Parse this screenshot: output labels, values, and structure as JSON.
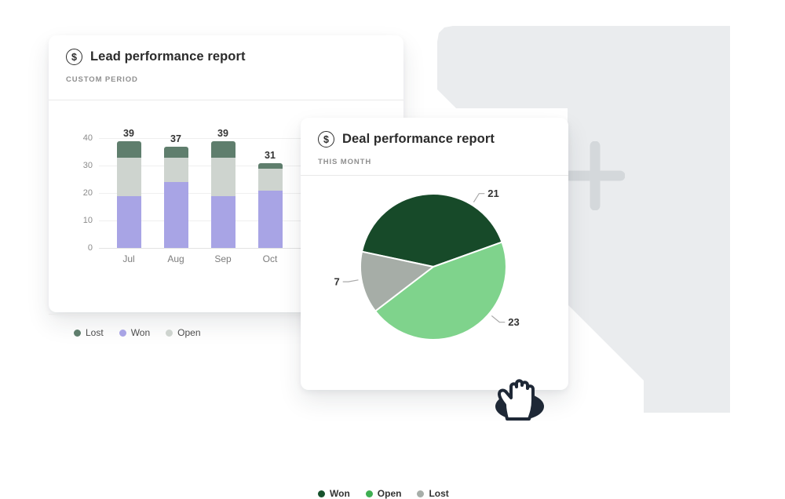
{
  "page": {
    "background": "#ffffff"
  },
  "panel": {
    "color": "#eaecee",
    "plus_icon_color": "#d4d8db"
  },
  "cards": {
    "lead": {
      "title": "Lead performance report",
      "subtitle": "CUSTOM PERIOD",
      "icon": "$",
      "legend": [
        {
          "label": "Lost",
          "color": "#5f7e6d"
        },
        {
          "label": "Won",
          "color": "#a8a4e5"
        },
        {
          "label": "Open",
          "color": "#ced4cf"
        }
      ]
    },
    "deal": {
      "title": "Deal performance report",
      "subtitle": "THIS MONTH",
      "icon": "$",
      "legend": [
        {
          "label": "Won",
          "color": "#17512c"
        },
        {
          "label": "Open",
          "color": "#3fae52"
        },
        {
          "label": "Lost",
          "color": "#a7aea9"
        }
      ]
    }
  },
  "chart_data": [
    {
      "type": "bar",
      "stacked": true,
      "title": "Lead performance report",
      "categories": [
        "Jul",
        "Aug",
        "Sep",
        "Oct"
      ],
      "series": [
        {
          "name": "Won",
          "color": "#a8a4e5",
          "values": [
            19,
            24,
            19,
            21
          ]
        },
        {
          "name": "Open",
          "color": "#ced4cf",
          "values": [
            14,
            9,
            14,
            8
          ]
        },
        {
          "name": "Lost",
          "color": "#5f7e6d",
          "values": [
            6,
            4,
            6,
            2
          ]
        }
      ],
      "totals": [
        39,
        37,
        39,
        31
      ],
      "y_ticks": [
        0,
        10,
        20,
        30,
        40
      ],
      "ylim": [
        0,
        40
      ],
      "grid": true,
      "legend_position": "bottom",
      "legend_order": [
        "Lost",
        "Won",
        "Open"
      ]
    },
    {
      "type": "pie",
      "title": "Deal performance report",
      "slices": [
        {
          "name": "Won",
          "value": 21,
          "color": "#174a29",
          "label_angle": 32
        },
        {
          "name": "Open",
          "value": 23,
          "color": "#7fd38c",
          "label_angle": 130
        },
        {
          "name": "Lost",
          "value": 7,
          "color": "#a6ada7",
          "label_angle": 260
        }
      ],
      "start_angle": 282,
      "slice_separator_color": "#ffffff",
      "leader_line_color": "#a9a9a9",
      "data_label_color": "#333333",
      "legend_position": "bottom"
    }
  ],
  "cursor": {
    "type": "hand-grab",
    "fill": "#ffffff",
    "outline": "#1e2836"
  }
}
